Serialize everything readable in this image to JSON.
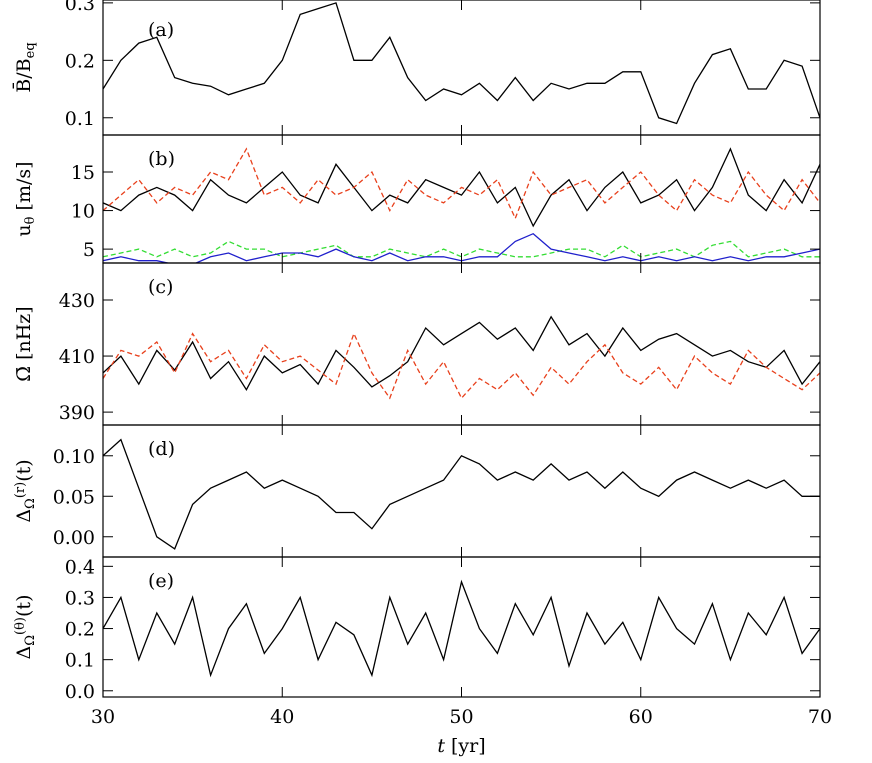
{
  "chart_data": [
    {
      "type": "line",
      "annotation": "(a)",
      "ylabel": [
        {
          "text": "B̄/B",
          "shift": "none"
        },
        {
          "text": "eq",
          "shift": "sub"
        }
      ],
      "x": [
        30,
        31,
        32,
        33,
        34,
        35,
        36,
        37,
        38,
        39,
        40,
        41,
        42,
        43,
        44,
        45,
        46,
        47,
        48,
        49,
        50,
        51,
        52,
        53,
        54,
        55,
        56,
        57,
        58,
        59,
        60,
        61,
        62,
        63,
        64,
        65,
        66,
        67,
        68,
        69,
        70
      ],
      "xlim": [
        30,
        70
      ],
      "xticks": [
        30,
        40,
        50,
        60,
        70
      ],
      "ylim": [
        0.07,
        0.305
      ],
      "yticks": [
        0.1,
        0.2,
        0.3
      ],
      "series": [
        {
          "color": "#000000",
          "dash": false,
          "values": [
            0.15,
            0.2,
            0.23,
            0.24,
            0.17,
            0.16,
            0.155,
            0.14,
            0.15,
            0.16,
            0.2,
            0.28,
            0.29,
            0.3,
            0.2,
            0.2,
            0.24,
            0.17,
            0.13,
            0.15,
            0.14,
            0.16,
            0.13,
            0.17,
            0.13,
            0.16,
            0.15,
            0.16,
            0.16,
            0.18,
            0.18,
            0.1,
            0.09,
            0.16,
            0.21,
            0.22,
            0.15,
            0.15,
            0.2,
            0.19,
            0.1
          ]
        }
      ]
    },
    {
      "type": "line",
      "annotation": "(b)",
      "ylabel": [
        {
          "text": "u",
          "shift": "none"
        },
        {
          "text": "θ",
          "shift": "sub"
        },
        {
          "text": " [m/s]",
          "shift": "none"
        }
      ],
      "x": [
        30,
        31,
        32,
        33,
        34,
        35,
        36,
        37,
        38,
        39,
        40,
        41,
        42,
        43,
        44,
        45,
        46,
        47,
        48,
        49,
        50,
        51,
        52,
        53,
        54,
        55,
        56,
        57,
        58,
        59,
        60,
        61,
        62,
        63,
        64,
        65,
        66,
        67,
        68,
        69,
        70
      ],
      "xlim": [
        30,
        70
      ],
      "xticks": [
        30,
        40,
        50,
        60,
        70
      ],
      "ylim": [
        3.2,
        19.8
      ],
      "yticks": [
        5,
        10,
        15
      ],
      "series": [
        {
          "color": "#000000",
          "dash": false,
          "values": [
            11,
            10,
            12,
            13,
            12,
            10,
            14,
            12,
            11,
            13,
            15,
            12,
            11,
            16,
            13,
            10,
            12,
            11,
            14,
            13,
            12,
            15,
            11,
            13,
            8,
            12,
            14,
            10,
            13,
            15,
            11,
            12,
            14,
            10,
            13,
            18,
            12,
            10,
            14,
            11,
            16
          ]
        },
        {
          "color": "#e8401c",
          "dash": true,
          "values": [
            10,
            12,
            14,
            11,
            13,
            12,
            15,
            14,
            18,
            12,
            13,
            11,
            14,
            12,
            13,
            15,
            10,
            14,
            12,
            11,
            13,
            12,
            14,
            9,
            15,
            12,
            13,
            14,
            11,
            13,
            15,
            12,
            10,
            14,
            12,
            11,
            15,
            12,
            10,
            14,
            11
          ]
        },
        {
          "color": "#33dd33",
          "dash": true,
          "values": [
            4,
            4.5,
            5,
            4,
            5,
            4,
            4.5,
            6,
            5,
            5,
            4,
            4.5,
            5,
            5.5,
            4,
            4,
            5,
            4.5,
            4,
            5,
            4,
            5,
            4.5,
            4,
            4,
            4.5,
            5,
            5,
            4,
            5.5,
            4,
            4.5,
            5,
            4,
            5.5,
            6,
            4,
            4.5,
            5,
            4,
            4
          ]
        },
        {
          "color": "#2020cc",
          "dash": false,
          "values": [
            3.5,
            4,
            3.5,
            3.5,
            3,
            3,
            4,
            4.5,
            3.5,
            4,
            4.5,
            4.5,
            4,
            5,
            4,
            3.5,
            4.5,
            3.5,
            4,
            4,
            3.5,
            4,
            4,
            6,
            7,
            5,
            4.5,
            4,
            3.5,
            4,
            3.5,
            4,
            3.5,
            4,
            3.5,
            4,
            3.5,
            4,
            4,
            4.5,
            5
          ]
        }
      ]
    },
    {
      "type": "line",
      "annotation": "(c)",
      "ylabel": [
        {
          "text": "Ω̄ [nHz]",
          "shift": "none"
        }
      ],
      "x": [
        30,
        31,
        32,
        33,
        34,
        35,
        36,
        37,
        38,
        39,
        40,
        41,
        42,
        43,
        44,
        45,
        46,
        47,
        48,
        49,
        50,
        51,
        52,
        53,
        54,
        55,
        56,
        57,
        58,
        59,
        60,
        61,
        62,
        63,
        64,
        65,
        66,
        67,
        68,
        69,
        70
      ],
      "xlim": [
        30,
        70
      ],
      "xticks": [
        30,
        40,
        50,
        60,
        70
      ],
      "ylim": [
        385.4,
        443.2
      ],
      "yticks": [
        390,
        410,
        430
      ],
      "series": [
        {
          "color": "#000000",
          "dash": false,
          "values": [
            404,
            410,
            400,
            412,
            405,
            415,
            402,
            408,
            398,
            410,
            404,
            407,
            400,
            412,
            406,
            399,
            403,
            408,
            420,
            414,
            418,
            422,
            416,
            420,
            412,
            424,
            414,
            418,
            410,
            420,
            412,
            416,
            418,
            414,
            410,
            412,
            408,
            406,
            412,
            400,
            408
          ]
        },
        {
          "color": "#e8401c",
          "dash": true,
          "values": [
            402,
            412,
            410,
            415,
            404,
            418,
            408,
            412,
            402,
            414,
            408,
            410,
            405,
            400,
            418,
            404,
            395,
            412,
            400,
            408,
            395,
            402,
            398,
            404,
            396,
            406,
            400,
            408,
            414,
            404,
            400,
            406,
            398,
            410,
            404,
            400,
            412,
            406,
            402,
            398,
            404
          ]
        }
      ]
    },
    {
      "type": "line",
      "annotation": "(d)",
      "ylabel": [
        {
          "text": "Δ",
          "shift": "none"
        },
        {
          "text": "Ω",
          "shift": "sub"
        },
        {
          "text": "(r)",
          "shift": "sup"
        },
        {
          "text": "(t)",
          "shift": "none"
        }
      ],
      "x": [
        30,
        31,
        32,
        33,
        34,
        35,
        36,
        37,
        38,
        39,
        40,
        41,
        42,
        43,
        44,
        45,
        46,
        47,
        48,
        49,
        50,
        51,
        52,
        53,
        54,
        55,
        56,
        57,
        58,
        59,
        60,
        61,
        62,
        63,
        64,
        65,
        66,
        67,
        68,
        69,
        70
      ],
      "xlim": [
        30,
        70
      ],
      "xticks": [
        30,
        40,
        50,
        60,
        70
      ],
      "ylim": [
        -0.025,
        0.138
      ],
      "yticks": [
        {
          "value": 0,
          "label": "0.00"
        },
        0.05,
        {
          "value": 0.1,
          "label": "0.10"
        }
      ],
      "series": [
        {
          "color": "#000000",
          "dash": false,
          "values": [
            0.1,
            0.12,
            0.06,
            0.0,
            -0.015,
            0.04,
            0.06,
            0.07,
            0.08,
            0.06,
            0.07,
            0.06,
            0.05,
            0.03,
            0.03,
            0.01,
            0.04,
            0.05,
            0.06,
            0.07,
            0.1,
            0.09,
            0.07,
            0.08,
            0.07,
            0.09,
            0.07,
            0.08,
            0.06,
            0.08,
            0.06,
            0.05,
            0.07,
            0.08,
            0.07,
            0.06,
            0.07,
            0.06,
            0.07,
            0.05,
            0.05
          ]
        }
      ]
    },
    {
      "type": "line",
      "annotation": "(e)",
      "ylabel": [
        {
          "text": "Δ",
          "shift": "none"
        },
        {
          "text": "Ω",
          "shift": "sub"
        },
        {
          "text": "(θ)",
          "shift": "sup"
        },
        {
          "text": "(t)",
          "shift": "none"
        }
      ],
      "xlabel": [
        {
          "text": "t",
          "shift": "italic"
        },
        {
          "text": " [yr]",
          "shift": "none"
        }
      ],
      "x": [
        30,
        31,
        32,
        33,
        34,
        35,
        36,
        37,
        38,
        39,
        40,
        41,
        42,
        43,
        44,
        45,
        46,
        47,
        48,
        49,
        50,
        51,
        52,
        53,
        54,
        55,
        56,
        57,
        58,
        59,
        60,
        61,
        62,
        63,
        64,
        65,
        66,
        67,
        68,
        69,
        70
      ],
      "xlim": [
        30,
        70
      ],
      "xticks": [
        30,
        40,
        50,
        60,
        70
      ],
      "ylim": [
        -0.02,
        0.43
      ],
      "yticks": [
        {
          "value": 0,
          "label": "0.0"
        },
        0.1,
        0.2,
        0.3,
        0.4
      ],
      "series": [
        {
          "color": "#000000",
          "dash": false,
          "values": [
            0.2,
            0.3,
            0.1,
            0.25,
            0.15,
            0.3,
            0.05,
            0.2,
            0.28,
            0.12,
            0.2,
            0.3,
            0.1,
            0.22,
            0.18,
            0.05,
            0.3,
            0.15,
            0.25,
            0.1,
            0.35,
            0.2,
            0.12,
            0.28,
            0.18,
            0.3,
            0.08,
            0.25,
            0.15,
            0.22,
            0.1,
            0.3,
            0.2,
            0.15,
            0.28,
            0.1,
            0.25,
            0.18,
            0.3,
            0.12,
            0.2
          ]
        }
      ]
    }
  ]
}
